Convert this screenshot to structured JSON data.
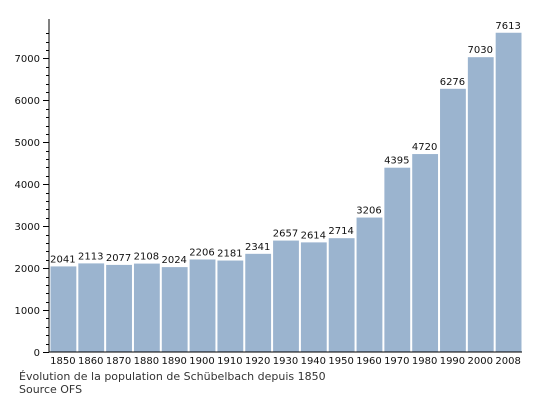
{
  "caption": {
    "line1": "Évolution de la population de Schübelbach depuis 1850",
    "line2": "Source OFS"
  },
  "colors": {
    "bar": "#9bb4cf",
    "axis": "#000000",
    "text": "#111111"
  },
  "chart_data": {
    "type": "bar",
    "title": "",
    "xlabel": "",
    "ylabel": "",
    "grid": false,
    "ylim": [
      0,
      7750
    ],
    "y_ticks": [
      0,
      1000,
      2000,
      3000,
      4000,
      5000,
      6000,
      7000
    ],
    "y_minor_step": 200,
    "categories": [
      "1850",
      "1860",
      "1870",
      "1880",
      "1890",
      "1900",
      "1910",
      "1920",
      "1930",
      "1940",
      "1950",
      "1960",
      "1970",
      "1980",
      "1990",
      "2000",
      "2008"
    ],
    "values": [
      2041,
      2113,
      2077,
      2108,
      2024,
      2206,
      2181,
      2341,
      2657,
      2614,
      2714,
      3206,
      4395,
      4720,
      6276,
      7030,
      7613
    ],
    "data_labels": [
      "2041",
      "2113",
      "2077",
      "2108",
      "2024",
      "2206",
      "2181",
      "2341",
      "2657",
      "2614",
      "2714",
      "3206",
      "4395",
      "4720",
      "6276",
      "7030",
      "7613"
    ]
  }
}
